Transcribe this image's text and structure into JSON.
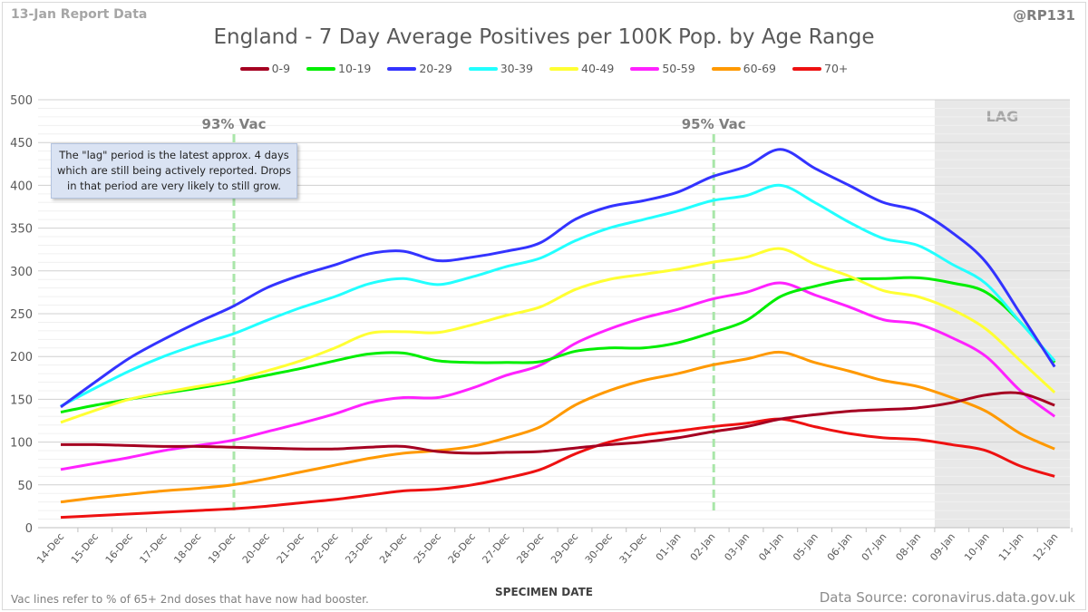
{
  "header": {
    "report_label": "13-Jan Report Data",
    "handle": "@RP131"
  },
  "annotation": "The \"lag\" period is the latest approx. 4 days which are still being actively reported. Drops in that period are very likely to still grow.",
  "footer": {
    "vac_note": "Vac lines refer to % of 65+ 2nd doses that have now had booster.",
    "source": "Data Source: coronavirus.data.gov.uk"
  },
  "chart_data": {
    "type": "line",
    "title": "England - 7 Day Average Positives per 100K Pop. by Age Range",
    "xlabel": "SPECIMEN DATE",
    "ylabel": "",
    "ylim": [
      0,
      500
    ],
    "yticks": [
      0,
      50,
      100,
      150,
      200,
      250,
      300,
      350,
      400,
      450,
      500
    ],
    "grid": true,
    "legend_position": "top",
    "x": [
      "14-Dec",
      "15-Dec",
      "16-Dec",
      "17-Dec",
      "18-Dec",
      "19-Dec",
      "20-Dec",
      "21-Dec",
      "22-Dec",
      "23-Dec",
      "24-Dec",
      "25-Dec",
      "26-Dec",
      "27-Dec",
      "28-Dec",
      "29-Dec",
      "30-Dec",
      "31-Dec",
      "01-Jan",
      "02-Jan",
      "03-Jan",
      "04-Jan",
      "05-Jan",
      "06-Jan",
      "07-Jan",
      "08-Jan",
      "09-Jan",
      "10-Jan",
      "11-Jan",
      "12-Jan"
    ],
    "lag_region": {
      "label": "LAG",
      "start": "09-Jan",
      "end": "12-Jan"
    },
    "vac_lines": [
      {
        "label": "93% Vac",
        "x": "19-Dec"
      },
      {
        "label": "95% Vac",
        "x": "02-Jan"
      }
    ],
    "series": [
      {
        "name": "0-9",
        "color": "#a50021",
        "values": [
          97,
          97,
          96,
          95,
          95,
          94,
          93,
          92,
          92,
          94,
          95,
          89,
          87,
          88,
          89,
          93,
          97,
          100,
          105,
          112,
          118,
          127,
          132,
          136,
          138,
          140,
          146,
          155,
          157,
          143
        ]
      },
      {
        "name": "10-19",
        "color": "#00ee00",
        "values": [
          135,
          143,
          150,
          157,
          163,
          170,
          178,
          186,
          195,
          203,
          204,
          195,
          193,
          193,
          194,
          206,
          210,
          210,
          216,
          228,
          242,
          270,
          282,
          290,
          291,
          292,
          286,
          275,
          240,
          193
        ]
      },
      {
        "name": "20-29",
        "color": "#3333ff",
        "values": [
          141,
          170,
          198,
          220,
          240,
          258,
          280,
          295,
          307,
          320,
          323,
          312,
          316,
          323,
          333,
          360,
          375,
          382,
          392,
          410,
          422,
          442,
          420,
          400,
          380,
          370,
          345,
          310,
          250,
          188
        ]
      },
      {
        "name": "30-39",
        "color": "#22ffff",
        "values": [
          142,
          163,
          183,
          200,
          214,
          226,
          242,
          257,
          270,
          285,
          291,
          284,
          293,
          305,
          315,
          335,
          350,
          360,
          370,
          382,
          388,
          400,
          380,
          357,
          338,
          330,
          308,
          285,
          240,
          195
        ]
      },
      {
        "name": "40-49",
        "color": "#ffff33",
        "values": [
          123,
          137,
          150,
          158,
          165,
          172,
          183,
          195,
          210,
          227,
          229,
          228,
          237,
          248,
          258,
          278,
          290,
          296,
          302,
          310,
          316,
          326,
          308,
          294,
          277,
          270,
          255,
          232,
          195,
          158
        ]
      },
      {
        "name": "50-59",
        "color": "#ff22ff",
        "values": [
          68,
          75,
          82,
          90,
          96,
          102,
          112,
          122,
          133,
          146,
          152,
          152,
          163,
          178,
          190,
          215,
          232,
          245,
          255,
          267,
          275,
          286,
          272,
          258,
          243,
          238,
          222,
          200,
          160,
          130
        ]
      },
      {
        "name": "60-69",
        "color": "#ff9900",
        "values": [
          30,
          35,
          39,
          43,
          46,
          50,
          57,
          65,
          73,
          81,
          87,
          90,
          95,
          105,
          118,
          143,
          160,
          172,
          180,
          190,
          197,
          205,
          193,
          183,
          172,
          165,
          152,
          136,
          110,
          92
        ]
      },
      {
        "name": "70+",
        "color": "#ee1111",
        "values": [
          12,
          14,
          16,
          18,
          20,
          22,
          25,
          29,
          33,
          38,
          43,
          45,
          50,
          58,
          68,
          86,
          100,
          108,
          113,
          118,
          122,
          127,
          118,
          110,
          105,
          103,
          97,
          90,
          72,
          60
        ]
      }
    ]
  }
}
